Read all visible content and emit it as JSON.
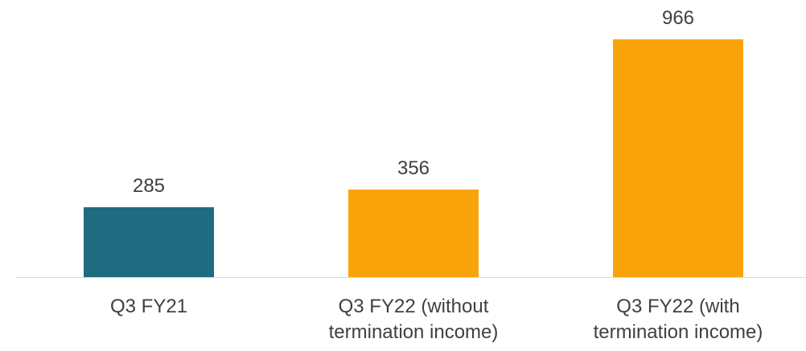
{
  "chart_data": {
    "type": "bar",
    "categories": [
      "Q3 FY21",
      "Q3 FY22 (without termination income)",
      "Q3 FY22 (with termination income)"
    ],
    "values": [
      285,
      356,
      966
    ],
    "colors": [
      "#1f6b80",
      "#f9a40a",
      "#f9a40a"
    ]
  }
}
